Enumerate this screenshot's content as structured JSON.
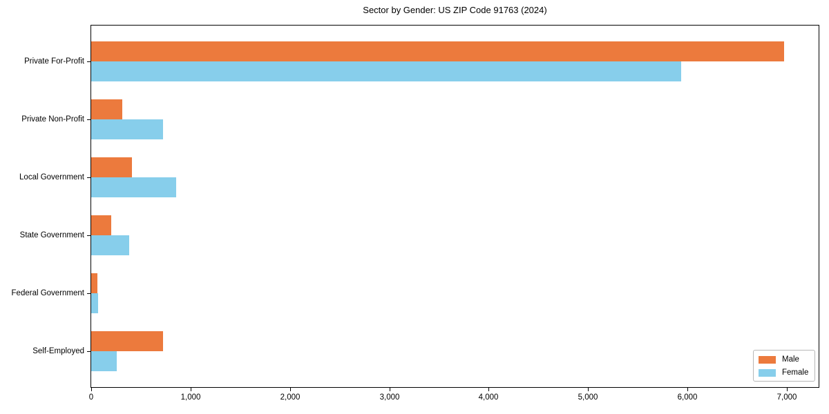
{
  "chart_data": {
    "type": "bar",
    "orientation": "horizontal",
    "title": "Sector by Gender: US ZIP Code 91763 (2024)",
    "categories": [
      "Private For-Profit",
      "Private Non-Profit",
      "Local Government",
      "State Government",
      "Federal Government",
      "Self-Employed"
    ],
    "series": [
      {
        "name": "Male",
        "color": "#ec7a3d",
        "values": [
          6970,
          310,
          410,
          205,
          60,
          720
        ]
      },
      {
        "name": "Female",
        "color": "#87ceeb",
        "values": [
          5940,
          720,
          855,
          385,
          70,
          255
        ]
      }
    ],
    "xlabel": "",
    "ylabel": "",
    "xlim": [
      0,
      7320
    ],
    "x_ticks": [
      0,
      1000,
      2000,
      3000,
      4000,
      5000,
      6000,
      7000
    ],
    "x_tick_labels": [
      "0",
      "1,000",
      "2,000",
      "3,000",
      "4,000",
      "5,000",
      "6,000",
      "7,000"
    ],
    "grid": false,
    "legend_position": "lower-right",
    "axis_color": "#000000",
    "background_color": "#ffffff"
  }
}
